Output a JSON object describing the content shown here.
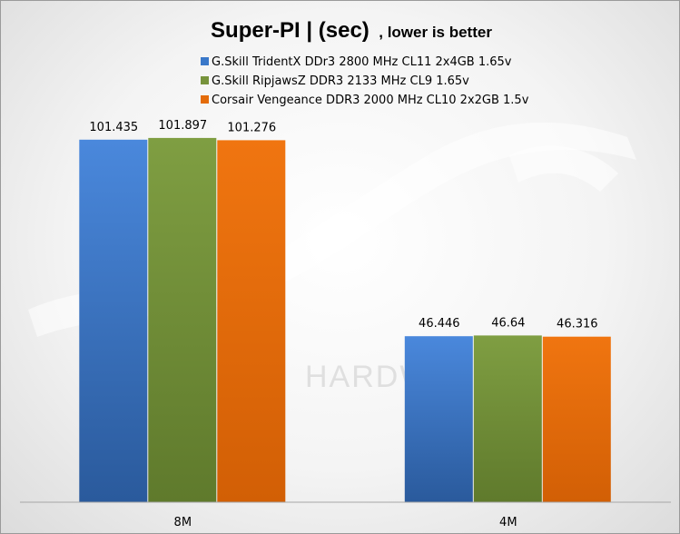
{
  "chart_data": {
    "type": "bar",
    "title": "Super-PI |  (sec)",
    "subtitle": ", lower is better",
    "categories": [
      "8M",
      "4M"
    ],
    "series": [
      {
        "name": "G.Skill TridentX DDr3 2800 MHz CL11 2x4GB 1.65v",
        "values": [
          101.435,
          46.446
        ],
        "color": "#3a78c9"
      },
      {
        "name": "G.Skill RipjawsZ DDR3 2133 MHz CL9 1.65v",
        "values": [
          101.897,
          46.64
        ],
        "color": "#77933c"
      },
      {
        "name": "Corsair Vengeance DDR3 2000 MHz CL10 2x2GB 1.5v",
        "values": [
          101.276,
          46.316
        ],
        "color": "#e46c0a"
      }
    ],
    "ylim": [
      0,
      125
    ],
    "grid": false,
    "legend": "top-center",
    "data_labels": true,
    "watermark": "HARDWA"
  }
}
